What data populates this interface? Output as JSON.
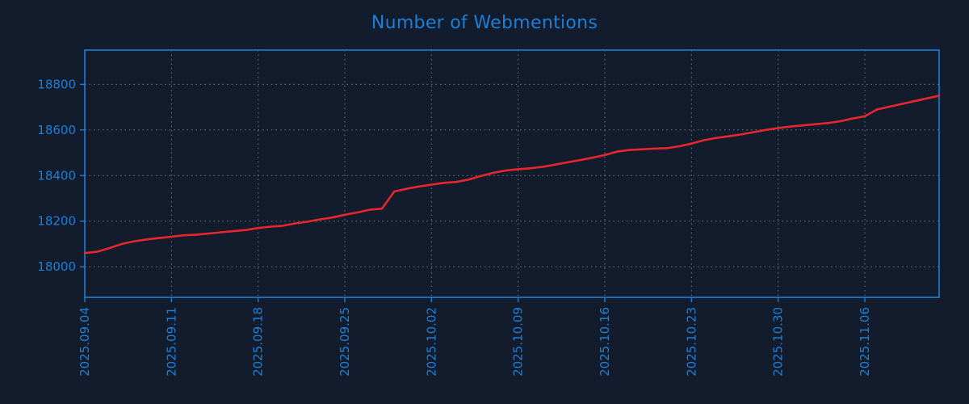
{
  "colors": {
    "background": "#131c2c",
    "accent_blue": "#1c7fd6",
    "series_red": "#e8262d",
    "gridline": "#b9c6d8"
  },
  "chart_data": {
    "type": "line",
    "title": "Number of Webmentions",
    "xlabel": "",
    "ylabel": "",
    "grid": true,
    "legend": "none",
    "x_tick_labels": [
      "2025.09.04",
      "2025.09.11",
      "2025.09.18",
      "2025.09.25",
      "2025.10.02",
      "2025.10.09",
      "2025.10.16",
      "2025.10.23",
      "2025.10.30",
      "2025.11.06"
    ],
    "x_tick_days": [
      0,
      7,
      14,
      21,
      28,
      35,
      42,
      49,
      56,
      63
    ],
    "x_total_days": 69,
    "yticks": [
      18000,
      18200,
      18400,
      18600,
      18800
    ],
    "ylim": [
      17866,
      18950
    ],
    "series": [
      {
        "name": "webmentions",
        "color": "#e8262d",
        "start_date": "2025.09.04",
        "interval": "daily",
        "values": [
          18060,
          18066,
          18082,
          18100,
          18112,
          18120,
          18126,
          18132,
          18138,
          18141,
          18146,
          18151,
          18156,
          18161,
          18170,
          18176,
          18180,
          18190,
          18198,
          18208,
          18216,
          18228,
          18238,
          18250,
          18255,
          18330,
          18342,
          18352,
          18360,
          18368,
          18372,
          18382,
          18398,
          18412,
          18422,
          18428,
          18432,
          18438,
          18448,
          18458,
          18468,
          18478,
          18490,
          18505,
          18512,
          18515,
          18518,
          18520,
          18528,
          18540,
          18555,
          18565,
          18572,
          18580,
          18590,
          18600,
          18608,
          18615,
          18620,
          18625,
          18630,
          18638,
          18650,
          18660,
          18690,
          18702,
          18714,
          18726,
          18738,
          18750
        ]
      }
    ]
  }
}
